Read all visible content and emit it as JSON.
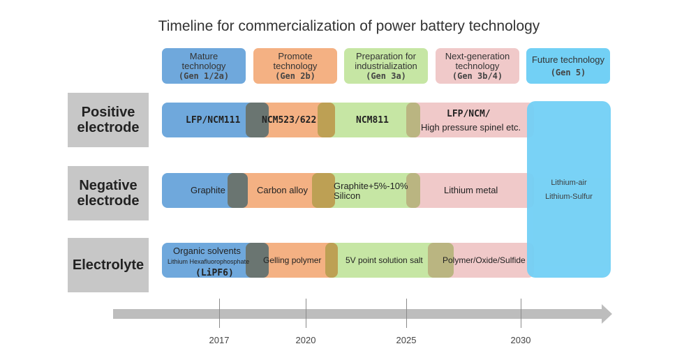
{
  "title": "Timeline for commercialization of power battery technology",
  "stages": [
    {
      "label": "Mature technology",
      "gen": "(Gen 1/2a)",
      "color": "#6fa8dc"
    },
    {
      "label": "Promote technology",
      "gen": "(Gen 2b)",
      "color": "#f4b183"
    },
    {
      "label": "Preparation for industrialization",
      "gen": "(Gen  3a)",
      "color": "#c6e6a4"
    },
    {
      "label": "Next-generation technology",
      "gen": "(Gen 3b/4)",
      "color": "#f0c9c9"
    },
    {
      "label": "Future technology",
      "gen": "(Gen 5)",
      "color": "#72d0f5"
    }
  ],
  "rows": [
    {
      "label": "Positive electrode",
      "items": [
        "LFP/NCM111",
        "NCM523/622",
        "NCM811",
        "LFP/NCM/",
        "High pressure spinel etc."
      ]
    },
    {
      "label": "Negative electrode",
      "items": [
        "Graphite",
        "Carbon alloy",
        "Graphite+5%-10%",
        "Silicon",
        "Lithium metal"
      ]
    },
    {
      "label": "Electrolyte",
      "items": [
        "Organic solvents",
        "Lithium Hexafluorophosphate",
        "(LiPF6)",
        "Gelling polymer",
        "5V point solution salt",
        "Polymer/Oxide/Sulfide"
      ]
    }
  ],
  "future": [
    "Lithium-air",
    "Lithium-Sulfur"
  ],
  "years": [
    "2017",
    "2020",
    "2025",
    "2030"
  ]
}
